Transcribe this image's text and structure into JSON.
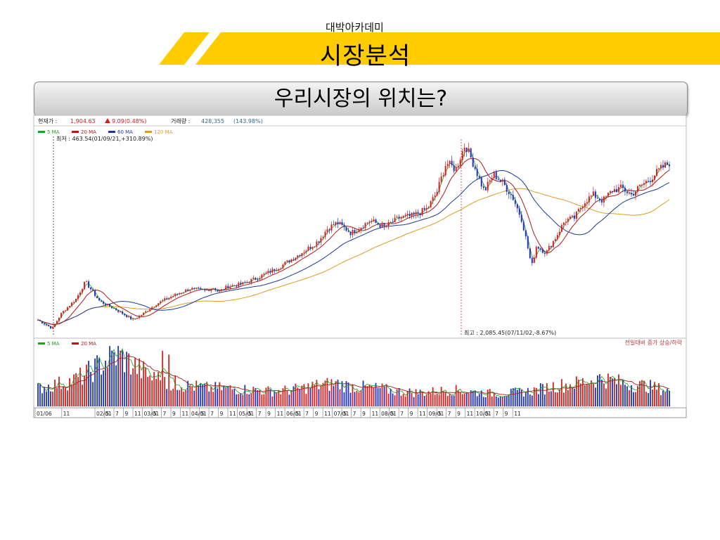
{
  "header": {
    "academy": "대박아카데미",
    "title": "시장분석"
  },
  "banner": {
    "text": "우리시장의 위치는?"
  },
  "colors": {
    "brand_yellow": "#FFCC00",
    "up": "#D42020",
    "down": "#1F33B8",
    "ma5": "#20A020",
    "ma20": "#B01818",
    "ma60": "#1A3A9A",
    "ma120": "#E09A20"
  },
  "chart_data": {
    "type": "candlestick",
    "info_bar": {
      "current_label": "현재가 :",
      "current_value": "1,904.63",
      "change_value": "9.09(0.48%)",
      "volume_label": "거래량 :",
      "volume_value": "428,355",
      "volume_ratio": "(143.98%)"
    },
    "legend": [
      {
        "label": "5 MA",
        "color": "#20A020"
      },
      {
        "label": "20 MA",
        "color": "#B01818"
      },
      {
        "label": "60 MA",
        "color": "#1A3A9A"
      },
      {
        "label": "120 MA",
        "color": "#E09A20"
      }
    ],
    "volume_legend": [
      {
        "label": "5 MA",
        "color": "#20A020"
      },
      {
        "label": "20 MA",
        "color": "#B01818"
      }
    ],
    "volume_note": "전일대비 증가 상승/하락",
    "low_annotation": "최저 : 463.54(01/09/21,+310.89%)",
    "high_annotation": "최고 : 2,085.45(07/11/02,-8.67%)",
    "x_ticks": [
      "01/06",
      "11",
      "02/01",
      "5",
      "7",
      "9",
      "11",
      "03/01",
      "5",
      "7",
      "9",
      "11",
      "04/01",
      "5",
      "7",
      "9",
      "11",
      "05/01",
      "5",
      "7",
      "9",
      "11",
      "06/01",
      "5",
      "7",
      "9",
      "11",
      "07/01",
      "5",
      "7",
      "9",
      "11",
      "08/01",
      "5",
      "7",
      "9",
      "11",
      "09/01",
      "5",
      "7",
      "9",
      "11",
      "10/01",
      "5",
      "7",
      "9",
      "11"
    ],
    "price_series": [
      {
        "month": 0,
        "value": 540
      },
      {
        "month": 3,
        "value": 465
      },
      {
        "month": 5,
        "value": 600
      },
      {
        "month": 8,
        "value": 720
      },
      {
        "month": 10,
        "value": 870
      },
      {
        "month": 13,
        "value": 700
      },
      {
        "month": 16,
        "value": 640
      },
      {
        "month": 20,
        "value": 540
      },
      {
        "month": 22,
        "value": 590
      },
      {
        "month": 25,
        "value": 680
      },
      {
        "month": 28,
        "value": 740
      },
      {
        "month": 32,
        "value": 810
      },
      {
        "month": 35,
        "value": 790
      },
      {
        "month": 37,
        "value": 820
      },
      {
        "month": 38,
        "value": 780
      },
      {
        "month": 40,
        "value": 830
      },
      {
        "month": 43,
        "value": 850
      },
      {
        "month": 46,
        "value": 900
      },
      {
        "month": 48,
        "value": 940
      },
      {
        "month": 51,
        "value": 1000
      },
      {
        "month": 54,
        "value": 1080
      },
      {
        "month": 57,
        "value": 1160
      },
      {
        "month": 59,
        "value": 1220
      },
      {
        "month": 61,
        "value": 1330
      },
      {
        "month": 63,
        "value": 1380
      },
      {
        "month": 66,
        "value": 1290
      },
      {
        "month": 70,
        "value": 1400
      },
      {
        "month": 73,
        "value": 1340
      },
      {
        "month": 76,
        "value": 1420
      },
      {
        "month": 79,
        "value": 1440
      },
      {
        "month": 82,
        "value": 1500
      },
      {
        "month": 84,
        "value": 1640
      },
      {
        "month": 86,
        "value": 1900
      },
      {
        "month": 88,
        "value": 1840
      },
      {
        "month": 90,
        "value": 2060
      },
      {
        "month": 92,
        "value": 1860
      },
      {
        "month": 94,
        "value": 1650
      },
      {
        "month": 96,
        "value": 1800
      },
      {
        "month": 98,
        "value": 1720
      },
      {
        "month": 100,
        "value": 1600
      },
      {
        "month": 102,
        "value": 1400
      },
      {
        "month": 104,
        "value": 1000
      },
      {
        "month": 105,
        "value": 1180
      },
      {
        "month": 107,
        "value": 1120
      },
      {
        "month": 109,
        "value": 1250
      },
      {
        "month": 111,
        "value": 1400
      },
      {
        "month": 113,
        "value": 1420
      },
      {
        "month": 115,
        "value": 1560
      },
      {
        "month": 117,
        "value": 1620
      },
      {
        "month": 119,
        "value": 1570
      },
      {
        "month": 121,
        "value": 1660
      },
      {
        "month": 123,
        "value": 1680
      },
      {
        "month": 125,
        "value": 1620
      },
      {
        "month": 127,
        "value": 1700
      },
      {
        "month": 129,
        "value": 1760
      },
      {
        "month": 131,
        "value": 1840
      },
      {
        "month": 133,
        "value": 1900
      }
    ],
    "volume_levels": [
      0.35,
      0.4,
      0.45,
      0.5,
      0.6,
      0.75,
      0.9,
      1.0,
      0.85,
      0.7,
      0.55,
      0.5,
      0.45,
      0.4,
      0.38,
      0.35,
      0.36,
      0.34,
      0.33,
      0.32,
      0.3,
      0.3,
      0.32,
      0.35,
      0.4,
      0.42,
      0.45,
      0.4,
      0.38,
      0.36,
      0.34,
      0.3,
      0.28,
      0.27,
      0.28,
      0.3,
      0.32,
      0.3,
      0.28,
      0.26,
      0.25,
      0.26,
      0.28,
      0.3,
      0.35,
      0.4,
      0.42,
      0.45,
      0.5,
      0.55,
      0.5,
      0.45,
      0.42,
      0.4,
      0.35,
      0.3
    ]
  }
}
